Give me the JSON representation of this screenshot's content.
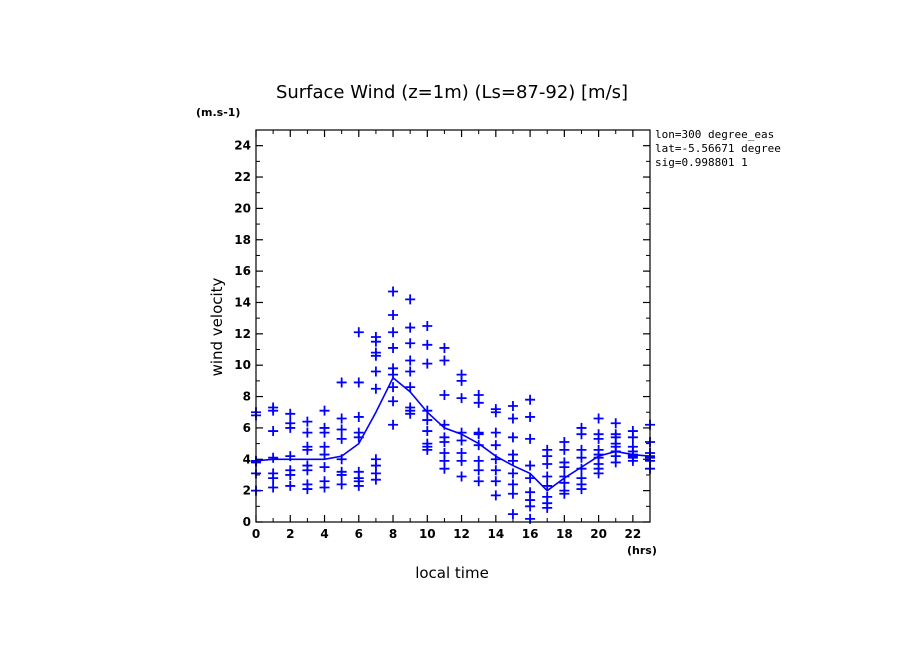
{
  "chart_data": {
    "type": "scatter",
    "title": "Surface Wind (z=1m) (Ls=87-92) [m/s]",
    "xlabel": "local time",
    "ylabel": "wind velocity",
    "x_unit": "(hrs)",
    "y_unit": "(m.s-1)",
    "xlim": [
      0,
      23
    ],
    "ylim": [
      0,
      25
    ],
    "x_ticks": [
      0,
      2,
      4,
      6,
      8,
      10,
      12,
      14,
      16,
      18,
      20,
      22
    ],
    "y_ticks": [
      0,
      2,
      4,
      6,
      8,
      10,
      12,
      14,
      16,
      18,
      20,
      22,
      24
    ],
    "info_lines": [
      "lon=300 degree_eas",
      "lat=-5.56671 degree",
      "sig=0.998801 1"
    ],
    "color": "#0000ff",
    "series": [
      {
        "type": "scatter",
        "x": [
          0,
          0,
          0,
          0,
          0,
          0,
          1,
          1,
          1,
          1,
          1,
          1,
          1,
          2,
          2,
          2,
          2,
          2,
          2,
          2,
          3,
          3,
          3,
          3,
          3,
          3,
          3,
          3,
          4,
          4,
          4,
          4,
          4,
          4,
          4,
          4,
          5,
          5,
          5,
          5,
          5,
          5,
          5,
          5,
          6,
          6,
          6,
          6,
          6,
          6,
          6,
          6,
          6,
          7,
          7,
          7,
          7,
          7,
          7,
          7,
          7,
          7,
          7,
          8,
          8,
          8,
          8,
          8,
          8,
          8,
          8,
          8,
          9,
          9,
          9,
          9,
          9,
          9,
          9,
          9,
          9,
          10,
          10,
          10,
          10,
          10,
          10,
          10,
          10,
          10,
          11,
          11,
          11,
          11,
          11,
          11,
          11,
          11,
          11,
          12,
          12,
          12,
          12,
          12,
          12,
          12,
          12,
          13,
          13,
          13,
          13,
          13,
          13,
          13,
          13,
          14,
          14,
          14,
          14,
          14,
          14,
          14,
          14,
          15,
          15,
          15,
          15,
          15,
          15,
          15,
          15,
          15,
          16,
          16,
          16,
          16,
          16,
          16,
          16,
          16,
          16,
          17,
          17,
          17,
          17,
          17,
          17,
          17,
          17,
          18,
          18,
          18,
          18,
          18,
          18,
          18,
          18,
          19,
          19,
          19,
          19,
          19,
          19,
          19,
          19,
          20,
          20,
          20,
          20,
          20,
          20,
          20,
          20,
          20,
          21,
          21,
          21,
          21,
          21,
          21,
          21,
          21,
          22,
          22,
          22,
          22,
          22,
          22,
          22,
          22,
          23,
          23,
          23,
          23,
          23,
          23,
          23
        ],
        "y": [
          7.0,
          6.8,
          3.9,
          3.8,
          3.1,
          2.0,
          7.3,
          7.1,
          5.8,
          4.1,
          3.1,
          2.8,
          2.2,
          6.9,
          6.3,
          6.0,
          4.2,
          3.3,
          3.0,
          2.3,
          6.4,
          5.7,
          4.8,
          4.6,
          3.6,
          3.3,
          2.4,
          2.1,
          7.1,
          6.0,
          5.7,
          4.8,
          4.3,
          3.5,
          2.6,
          2.2,
          8.9,
          6.6,
          5.9,
          5.3,
          4.0,
          3.2,
          3.0,
          2.4,
          12.1,
          8.9,
          6.7,
          5.7,
          5.4,
          3.2,
          2.8,
          2.6,
          2.3,
          11.8,
          11.5,
          10.8,
          10.6,
          9.6,
          8.5,
          4.0,
          3.6,
          3.1,
          2.7,
          14.7,
          13.2,
          12.1,
          11.1,
          9.8,
          9.4,
          8.6,
          7.7,
          6.2,
          14.2,
          12.4,
          11.4,
          10.3,
          9.6,
          8.6,
          7.3,
          7.1,
          6.9,
          12.5,
          11.3,
          10.1,
          7.1,
          6.5,
          5.8,
          5.0,
          4.8,
          4.6,
          11.1,
          10.3,
          8.1,
          6.2,
          5.4,
          5.1,
          4.4,
          3.9,
          3.4,
          9.4,
          9.0,
          7.9,
          5.7,
          5.2,
          4.4,
          3.9,
          2.9,
          8.1,
          7.6,
          5.7,
          5.6,
          4.9,
          3.9,
          3.3,
          2.6,
          7.2,
          7.0,
          5.7,
          4.9,
          4.0,
          3.3,
          2.6,
          1.7,
          7.4,
          6.6,
          5.4,
          4.3,
          3.9,
          3.1,
          2.4,
          1.8,
          0.5,
          7.8,
          6.7,
          5.3,
          3.6,
          2.8,
          1.9,
          1.4,
          1.0,
          0.2,
          4.6,
          4.2,
          3.7,
          2.9,
          2.3,
          1.6,
          1.2,
          0.9,
          5.1,
          4.6,
          3.8,
          3.5,
          2.9,
          2.5,
          2.0,
          1.8,
          6.0,
          5.6,
          4.6,
          4.1,
          3.4,
          2.8,
          2.4,
          2.1,
          6.6,
          5.6,
          5.3,
          4.6,
          4.3,
          4.1,
          3.7,
          3.4,
          3.1,
          6.3,
          5.6,
          5.4,
          5.0,
          4.8,
          4.5,
          4.2,
          3.8,
          5.8,
          5.4,
          4.8,
          4.5,
          4.3,
          4.2,
          4.1,
          3.9,
          6.2,
          5.1,
          4.4,
          4.2,
          4.1,
          3.9,
          3.4
        ]
      },
      {
        "type": "line",
        "x": [
          0,
          1,
          2,
          3,
          4,
          5,
          6,
          7,
          8,
          9,
          10,
          11,
          12,
          13,
          14,
          15,
          16,
          17,
          18,
          19,
          20,
          21,
          22,
          23
        ],
        "y": [
          3.9,
          4.0,
          4.0,
          4.0,
          4.0,
          4.2,
          5.0,
          7.0,
          9.2,
          8.3,
          7.0,
          6.0,
          5.6,
          5.0,
          4.2,
          3.6,
          3.1,
          2.0,
          2.8,
          3.5,
          4.2,
          4.5,
          4.3,
          4.2
        ]
      }
    ]
  }
}
